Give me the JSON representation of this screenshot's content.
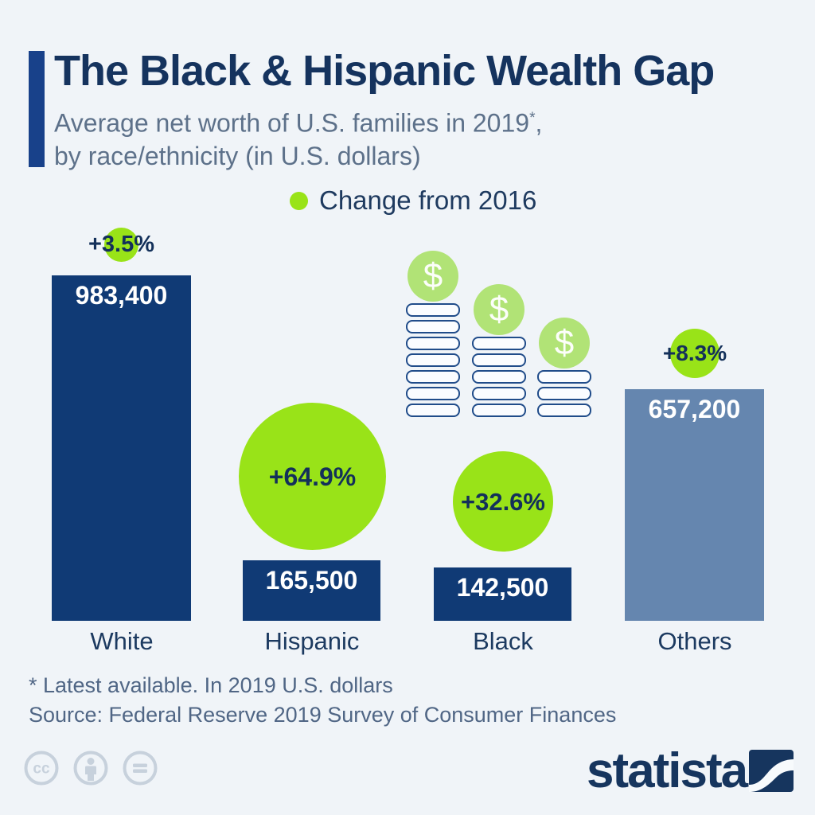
{
  "header": {
    "title": "The Black & Hispanic Wealth Gap",
    "subtitle_before_sup": "Average net worth of U.S. families in 2019",
    "subtitle_sup": "*",
    "subtitle_after_sup": ",",
    "subtitle_line2": "by race/ethnicity (in U.S. dollars)"
  },
  "legend": {
    "label": "Change from 2016"
  },
  "chart_data": {
    "type": "bar",
    "title": "The Black & Hispanic Wealth Gap",
    "subtitle": "Average net worth of U.S. families in 2019, by race/ethnicity (in U.S. dollars)",
    "categories": [
      "White",
      "Hispanic",
      "Black",
      "Others"
    ],
    "series": [
      {
        "name": "Average net worth 2019 (U.S. dollars)",
        "values": [
          983400,
          165500,
          142500,
          657200
        ],
        "labels": [
          "983,400",
          "165,500",
          "142,500",
          "657,200"
        ]
      },
      {
        "name": "Change from 2016 (%)",
        "values": [
          3.5,
          64.9,
          32.6,
          8.3
        ],
        "labels": [
          "+3.5%",
          "+64.9%",
          "+32.6%",
          "+8.3%"
        ]
      }
    ],
    "ylim": [
      0,
      1000000
    ],
    "grid": false,
    "legend_position": "top-center",
    "bar_colors": [
      "#103a75",
      "#103a75",
      "#103a75",
      "#6586af"
    ],
    "change_bubble_color": "#99e318"
  },
  "footnotes": {
    "line1": "* Latest available. In 2019 U.S. dollars",
    "line2": "Source: Federal Reserve 2019 Survey of Consumer Finances"
  },
  "branding": {
    "logo_text": "statista",
    "license_icons": [
      "cc-icon",
      "attribution-icon",
      "no-derivatives-icon"
    ]
  },
  "decoration": {
    "coin_symbol": "$",
    "coin_stacks": [
      7,
      5,
      3
    ]
  },
  "colors": {
    "background": "#f0f4f8",
    "bar_navy": "#103a75",
    "bar_slate": "#6586af",
    "change_green": "#99e318",
    "coin_green": "#b1e376",
    "coin_outline": "#204c8a",
    "title_navy": "#15335e",
    "subtitle_gray": "#5d718a",
    "accent_bar_blue": "#18418a",
    "license_icon_gray": "#c7d1dc"
  }
}
